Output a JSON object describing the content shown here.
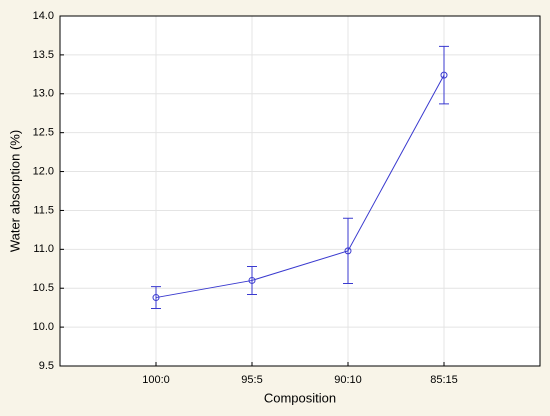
{
  "chart_data": {
    "type": "line",
    "x_label": "Composition",
    "y_label": "Water absorption (%)",
    "categories": [
      "100:0",
      "95:5",
      "90:10",
      "85:15"
    ],
    "series": [
      {
        "color": "#3a3acf",
        "values": [
          10.38,
          10.6,
          10.98,
          13.24
        ],
        "errors": [
          0.14,
          0.18,
          0.42,
          0.37
        ]
      }
    ],
    "ylim": [
      9.5,
      14.0
    ],
    "yticks": [
      9.5,
      {
        "value": 10.0,
        "label": "10.0"
      },
      10.5,
      {
        "value": 11.0,
        "label": "11.0"
      },
      11.5,
      {
        "value": 12.0,
        "label": "12.0"
      },
      12.5,
      {
        "value": 13.0,
        "label": "13.0"
      },
      13.5,
      {
        "value": 14.0,
        "label": "14.0"
      }
    ],
    "grid": true
  }
}
